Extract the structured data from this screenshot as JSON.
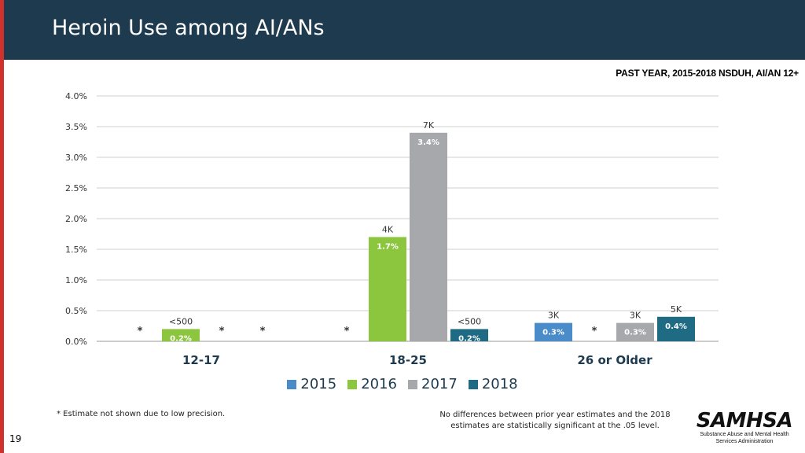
{
  "header": {
    "title": "Heroin Use among AI/ANs",
    "subtitle": "PAST YEAR, 2015-2018  NSDUH, AI/AN 12+"
  },
  "colors": {
    "header_bg": "#1d3a4f",
    "accent_red": "#d0312d",
    "series_2015": "#4a8bc9",
    "series_2016": "#8cc63f",
    "series_2017": "#a6a8ab",
    "series_2018": "#1f6b83"
  },
  "chart_data": {
    "type": "bar",
    "categories": [
      "12-17",
      "18-25",
      "26 or Older"
    ],
    "y_ticks": [
      "0.0%",
      "0.5%",
      "1.0%",
      "1.5%",
      "2.0%",
      "2.5%",
      "3.0%",
      "3.5%",
      "4.0%"
    ],
    "ylim": [
      0,
      4.0
    ],
    "grid": true,
    "legend_position": "bottom",
    "series": [
      {
        "name": "2015",
        "values": [
          null,
          null,
          0.3
        ],
        "value_labels": [
          "",
          "",
          "0.3%"
        ],
        "count_labels": [
          "",
          "",
          "3K"
        ],
        "markers": [
          "*",
          "*",
          ""
        ]
      },
      {
        "name": "2016",
        "values": [
          0.2,
          1.7,
          null
        ],
        "value_labels": [
          "0.2%",
          "1.7%",
          ""
        ],
        "count_labels": [
          "<500",
          "4K",
          ""
        ],
        "markers": [
          "",
          "",
          "*"
        ]
      },
      {
        "name": "2017",
        "values": [
          null,
          3.4,
          0.3
        ],
        "value_labels": [
          "",
          "3.4%",
          "0.3%"
        ],
        "count_labels": [
          "",
          "7K",
          "3K"
        ],
        "markers": [
          "*",
          "",
          ""
        ]
      },
      {
        "name": "2018",
        "values": [
          null,
          0.2,
          0.4
        ],
        "value_labels": [
          "",
          "0.2%",
          "0.4%"
        ],
        "count_labels": [
          "",
          "<500",
          "5K"
        ],
        "markers": [
          "*",
          "",
          ""
        ]
      }
    ]
  },
  "footnotes": {
    "left": "* Estimate not shown due to low precision.",
    "right_line1": "No differences between prior year estimates and the 2018",
    "right_line2": "estimates are statistically significant at the .05 level."
  },
  "page_number": "19",
  "logo": {
    "name": "SAMHSA",
    "line1": "Substance Abuse and Mental Health",
    "line2": "Services Administration"
  }
}
